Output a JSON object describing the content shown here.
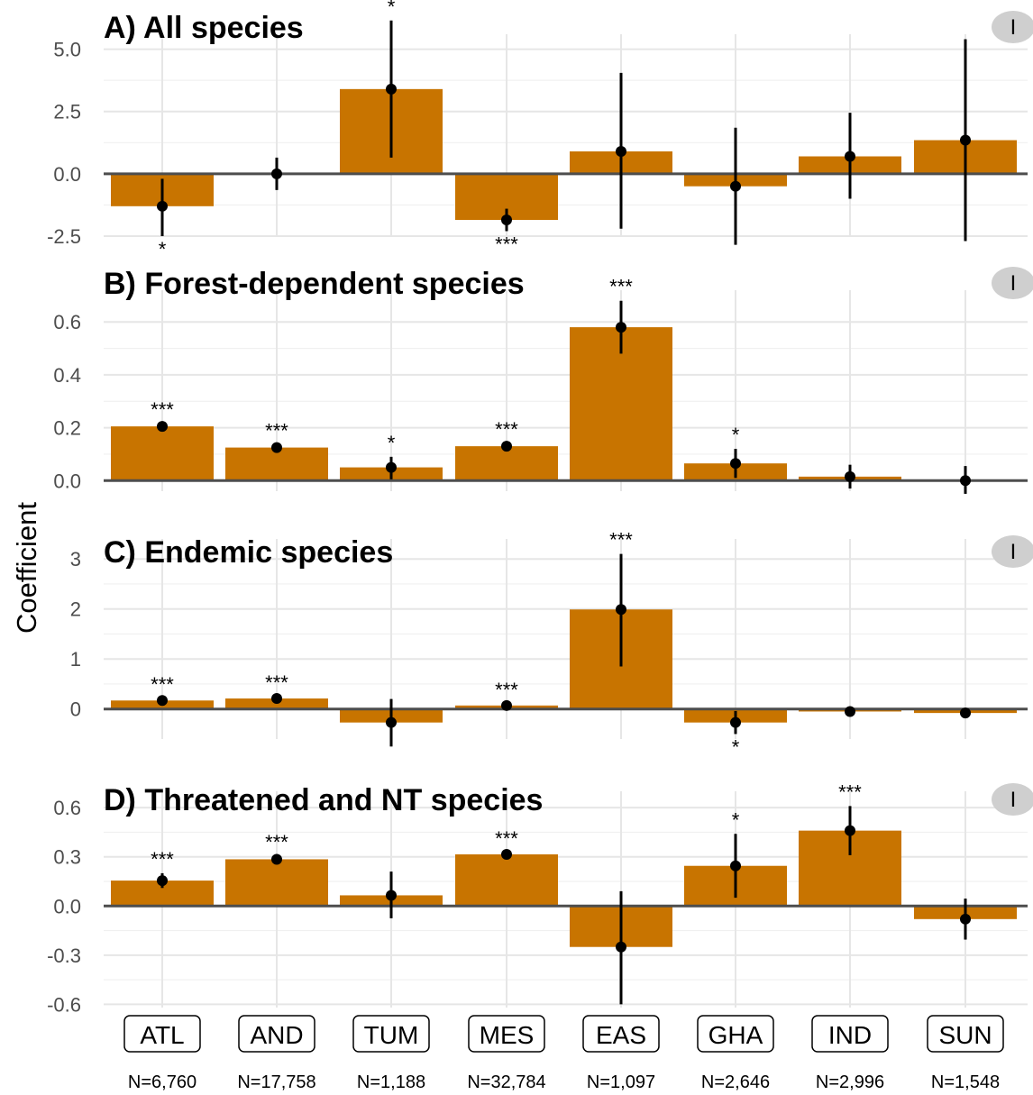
{
  "chart_data": {
    "type": "bar",
    "ylabel": "Coefficient",
    "categories": [
      "ATL",
      "AND",
      "TUM",
      "MES",
      "EAS",
      "GHA",
      "IND",
      "SUN"
    ],
    "sample_sizes": [
      "N=6,760",
      "N=17,758",
      "N=1,188",
      "N=32,784",
      "N=1,097",
      "N=2,646",
      "N=2,996",
      "N=1,548"
    ],
    "bar_color": "#c87400",
    "badge_label": "I",
    "panels": [
      {
        "title": "A) All species",
        "ylim": [
          -2.5,
          5.6
        ],
        "yticks": [
          -2.5,
          0.0,
          2.5,
          5.0
        ],
        "ytick_labels": [
          "-2.5",
          "0.0",
          "2.5",
          "5.0"
        ],
        "values": [
          -1.3,
          0.0,
          3.4,
          -1.85,
          0.9,
          -0.5,
          0.7,
          1.35
        ],
        "ci_low": [
          -2.5,
          -0.65,
          0.65,
          -2.3,
          -2.2,
          -2.85,
          -1.0,
          -2.7
        ],
        "ci_high": [
          -0.2,
          0.65,
          6.15,
          -1.4,
          4.05,
          1.85,
          2.45,
          5.4
        ],
        "significance": [
          "*",
          "",
          "*",
          "***",
          "",
          "",
          "",
          ""
        ]
      },
      {
        "title": "B) Forest-dependent species",
        "ylim": [
          -0.04,
          0.72
        ],
        "yticks": [
          0.0,
          0.2,
          0.4,
          0.6
        ],
        "ytick_labels": [
          "0.0",
          "0.2",
          "0.4",
          "0.6"
        ],
        "values": [
          0.205,
          0.125,
          0.05,
          0.13,
          0.58,
          0.065,
          0.015,
          0.0
        ],
        "ci_low": [
          0.195,
          0.115,
          0.005,
          0.12,
          0.48,
          0.01,
          -0.03,
          -0.05
        ],
        "ci_high": [
          0.215,
          0.135,
          0.09,
          0.14,
          0.68,
          0.12,
          0.06,
          0.055
        ],
        "significance": [
          "***",
          "***",
          "*",
          "***",
          "***",
          "*",
          "",
          ""
        ]
      },
      {
        "title": "C) Endemic species",
        "ylim": [
          -0.6,
          3.4
        ],
        "yticks": [
          0,
          1,
          2,
          3
        ],
        "ytick_labels": [
          "0",
          "1",
          "2",
          "3"
        ],
        "values": [
          0.17,
          0.21,
          -0.27,
          0.07,
          1.99,
          -0.27,
          -0.05,
          -0.08
        ],
        "ci_low": [
          0.13,
          0.17,
          -0.75,
          0.04,
          0.85,
          -0.5,
          -0.11,
          -0.15
        ],
        "ci_high": [
          0.21,
          0.25,
          0.2,
          0.1,
          3.1,
          -0.04,
          0.0,
          -0.02
        ],
        "significance": [
          "***",
          "***",
          "",
          "***",
          "***",
          "*",
          "",
          ""
        ]
      },
      {
        "title": "D) Threatened and NT species",
        "ylim": [
          -0.62,
          0.7
        ],
        "yticks": [
          -0.6,
          -0.3,
          0.0,
          0.3,
          0.6
        ],
        "ytick_labels": [
          "-0.6",
          "-0.3",
          "0.0",
          "0.3",
          "0.6"
        ],
        "values": [
          0.155,
          0.285,
          0.065,
          0.315,
          -0.25,
          0.245,
          0.46,
          -0.08
        ],
        "ci_low": [
          0.11,
          0.265,
          -0.075,
          0.305,
          -0.6,
          0.05,
          0.31,
          -0.205
        ],
        "ci_high": [
          0.2,
          0.305,
          0.21,
          0.325,
          0.09,
          0.44,
          0.61,
          0.045
        ],
        "significance": [
          "***",
          "***",
          "",
          "***",
          "",
          "*",
          "***",
          ""
        ]
      }
    ]
  }
}
